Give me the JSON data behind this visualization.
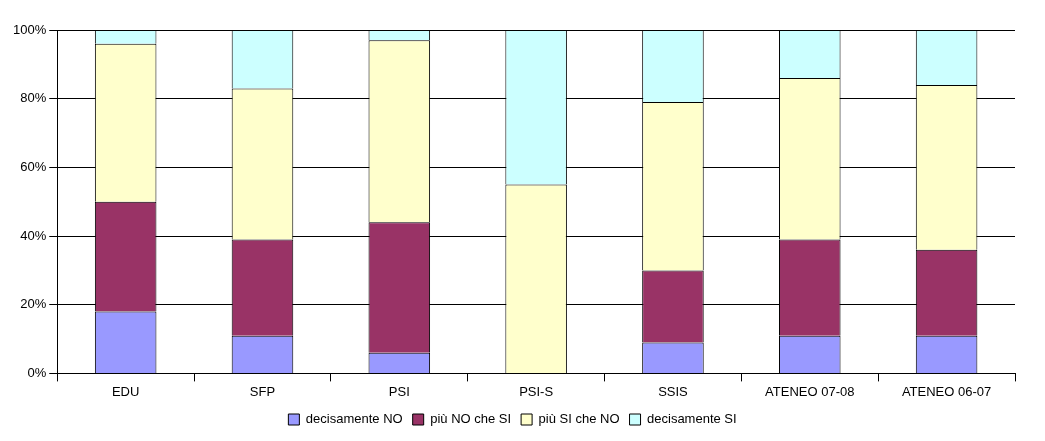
{
  "chart_data": {
    "type": "bar",
    "stacked": true,
    "categories": [
      "EDU",
      "SFP",
      "PSI",
      "PSI-S",
      "SSIS",
      "ATENEO 07-08",
      "ATENEO 06-07"
    ],
    "series": [
      {
        "name": "decisamente NO",
        "color": "#9999ff",
        "values": [
          18,
          11,
          6,
          0,
          9,
          11,
          11
        ]
      },
      {
        "name": "più NO che SI",
        "color": "#993366",
        "values": [
          32,
          28,
          38,
          0,
          21,
          28,
          25
        ]
      },
      {
        "name": "più SI che NO",
        "color": "#ffffcc",
        "values": [
          46,
          44,
          53,
          55,
          49,
          47,
          48
        ]
      },
      {
        "name": "decisamente SI",
        "color": "#ccffff",
        "values": [
          4,
          17,
          3,
          45,
          21,
          14,
          16
        ]
      }
    ],
    "ylim": [
      0,
      100
    ],
    "yticks": [
      {
        "value": 0,
        "label": "0%"
      },
      {
        "value": 20,
        "label": "20%"
      },
      {
        "value": 40,
        "label": "40%"
      },
      {
        "value": 60,
        "label": "60%"
      },
      {
        "value": 80,
        "label": "80%"
      },
      {
        "value": 100,
        "label": "100%"
      }
    ],
    "grid": "y",
    "legend": "bottom"
  }
}
